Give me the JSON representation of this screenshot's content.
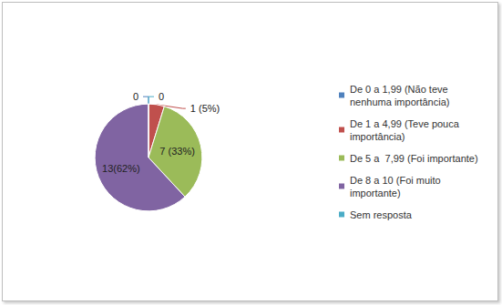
{
  "chart_data": {
    "type": "pie",
    "categories": [
      "De 0 a 1,99 (Não teve nenhuma importância)",
      "De 1 a 4,99 (Teve pouca importância)",
      "De 5 a  7,99 (Foi importante)",
      "De 8 a 10 (Foi muito importante)",
      "Sem resposta"
    ],
    "values": [
      0,
      1,
      7,
      13,
      0
    ],
    "value_labels": [
      "0",
      "1 (5%)",
      "7 (33%)",
      "13(62%)",
      "0"
    ],
    "colors": [
      "#4f81bd",
      "#c0504d",
      "#9bbb59",
      "#8064a2",
      "#4bacc6"
    ],
    "data_labels": true,
    "legend": "right"
  }
}
